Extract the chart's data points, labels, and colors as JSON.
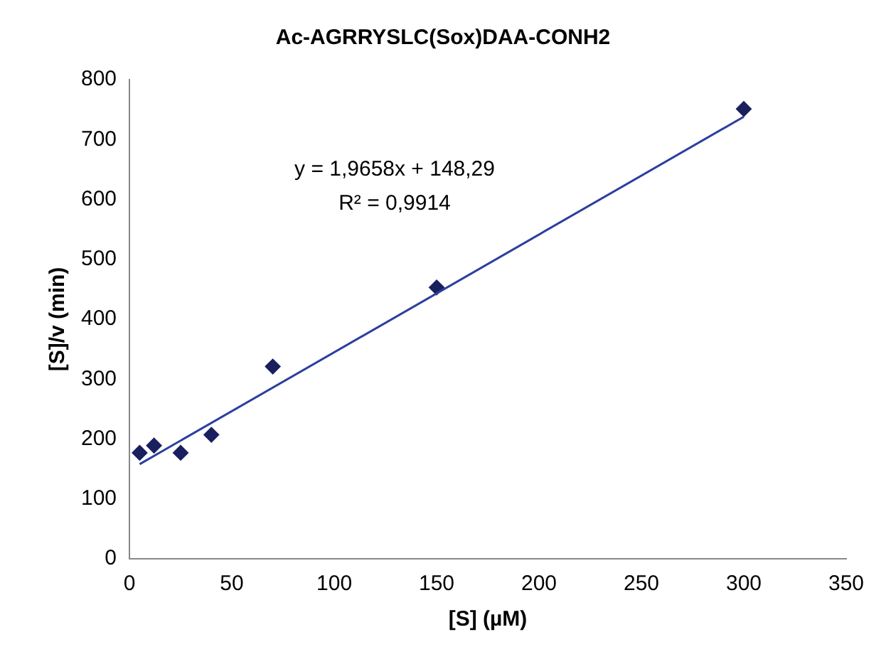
{
  "chart_data": {
    "type": "scatter",
    "title": "Ac-AGRRYSLC(Sox)DAA-CONH2",
    "xlabel": "[S] (µM)",
    "ylabel": "[S]/v (min)",
    "series": [
      {
        "color": "#1a1f5e",
        "x": [
          5,
          12,
          25,
          40,
          70,
          150,
          300
        ],
        "values": [
          177,
          189,
          177,
          207,
          321,
          453,
          751
        ],
        "marker": "diamond"
      },
      {
        "type": "line",
        "color": "#2a3f9f",
        "x": [
          5,
          300
        ],
        "values": [
          158,
          738
        ],
        "marker": "none",
        "line_style": "solid"
      }
    ],
    "annotations": [
      "y = 1,9658x + 148,29",
      "R² = 0,9914"
    ],
    "xlim": [
      0,
      350
    ],
    "xticks": [
      0,
      50,
      100,
      150,
      200,
      250,
      300,
      350
    ],
    "ylim": [
      0,
      800
    ],
    "yticks": [
      0,
      100,
      200,
      300,
      400,
      500,
      600,
      700,
      800
    ],
    "grid": false,
    "legend": false
  }
}
